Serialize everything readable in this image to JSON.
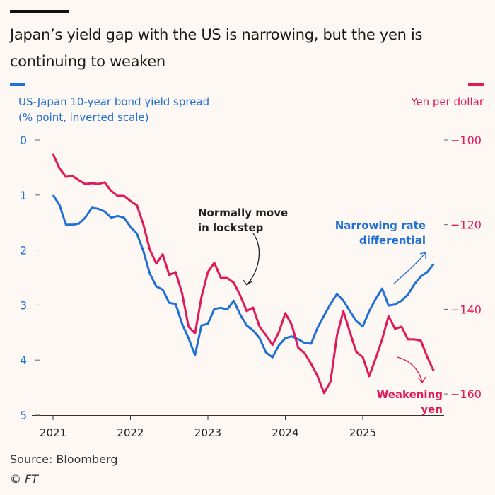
{
  "chart_data": {
    "type": "line",
    "title": "Japan’s yield gap with the US is narrowing, but the yen is continuing to weaken",
    "x": [
      "2021-01",
      "2021-02",
      "2021-03",
      "2021-04",
      "2021-05",
      "2021-06",
      "2021-07",
      "2021-08",
      "2021-09",
      "2021-10",
      "2021-11",
      "2021-12",
      "2022-01",
      "2022-02",
      "2022-03",
      "2022-04",
      "2022-05",
      "2022-06",
      "2022-07",
      "2022-08",
      "2022-09",
      "2022-10",
      "2022-11",
      "2022-12",
      "2023-01",
      "2023-02",
      "2023-03",
      "2023-04",
      "2023-05",
      "2023-06",
      "2023-07",
      "2023-08",
      "2023-09",
      "2023-10",
      "2023-11",
      "2023-12",
      "2024-01",
      "2024-02",
      "2024-03",
      "2024-04",
      "2024-05",
      "2024-06",
      "2024-07",
      "2024-08",
      "2024-09",
      "2024-10",
      "2024-11",
      "2024-12",
      "2025-01",
      "2025-02",
      "2025-03",
      "2025-04",
      "2025-05",
      "2025-06",
      "2025-07",
      "2025-08",
      "2025-09",
      "2025-10",
      "2025-11",
      "2025-12"
    ],
    "x_ticks": [
      "2021",
      "2022",
      "2023",
      "2024",
      "2025"
    ],
    "series": [
      {
        "name": "US-Japan 10-year bond yield spread",
        "axis": "left",
        "color": "#1f6fd6",
        "values": [
          1.0,
          1.18,
          1.54,
          1.54,
          1.52,
          1.41,
          1.23,
          1.25,
          1.3,
          1.41,
          1.38,
          1.41,
          1.58,
          1.7,
          2.02,
          2.43,
          2.66,
          2.72,
          2.96,
          2.98,
          3.34,
          3.6,
          3.91,
          3.37,
          3.34,
          3.07,
          3.05,
          3.08,
          2.92,
          3.17,
          3.37,
          3.46,
          3.6,
          3.86,
          3.95,
          3.73,
          3.6,
          3.57,
          3.62,
          3.69,
          3.7,
          3.41,
          3.19,
          2.98,
          2.8,
          2.92,
          3.11,
          3.29,
          3.39,
          3.11,
          2.89,
          2.7,
          3.01,
          2.99,
          2.92,
          2.81,
          2.62,
          2.48,
          2.4,
          2.25
        ]
      },
      {
        "name": "Yen per dollar",
        "axis": "right",
        "color": "#e0185c",
        "values": [
          -103.3,
          -106.7,
          -108.7,
          -108.5,
          -109.5,
          -110.4,
          -110.2,
          -110.4,
          -110.0,
          -112.0,
          -113.2,
          -113.2,
          -114.4,
          -115.4,
          -120.0,
          -125.9,
          -129.2,
          -127.0,
          -131.9,
          -131.2,
          -136.2,
          -144.1,
          -145.7,
          -137.1,
          -131.2,
          -129.0,
          -132.6,
          -132.6,
          -133.7,
          -136.7,
          -140.4,
          -139.6,
          -144.1,
          -146.1,
          -148.4,
          -145.4,
          -140.9,
          -143.7,
          -149.1,
          -150.4,
          -152.9,
          -155.8,
          -159.8,
          -157.1,
          -146.2,
          -140.4,
          -145.4,
          -150.1,
          -151.3,
          -155.8,
          -151.6,
          -147.1,
          -141.6,
          -144.6,
          -144.1,
          -147.1,
          -147.1,
          -147.4,
          -151.3,
          -154.6
        ]
      }
    ],
    "left_axis": {
      "label_line1": "US-Japan 10-year bond yield spread",
      "label_line2": "(% point, inverted scale)",
      "ylim": [
        0,
        5
      ],
      "inverted": true,
      "ticks": [
        "0",
        "1",
        "2",
        "3",
        "4",
        "5"
      ]
    },
    "right_axis": {
      "label": "Yen per dollar",
      "ylim": [
        -100,
        -165
      ],
      "ticks": [
        "-100",
        "-120",
        "-140",
        "-160"
      ]
    },
    "grid": false,
    "annotations": {
      "lockstep_line1": "Normally move",
      "lockstep_line2": "in lockstep",
      "narrowing_line1": "Narrowing rate",
      "narrowing_line2": "differential",
      "weakening_line1": "Weakening",
      "weakening_line2": "yen"
    }
  },
  "source": "Source: Bloomberg",
  "copyright": "© FT"
}
